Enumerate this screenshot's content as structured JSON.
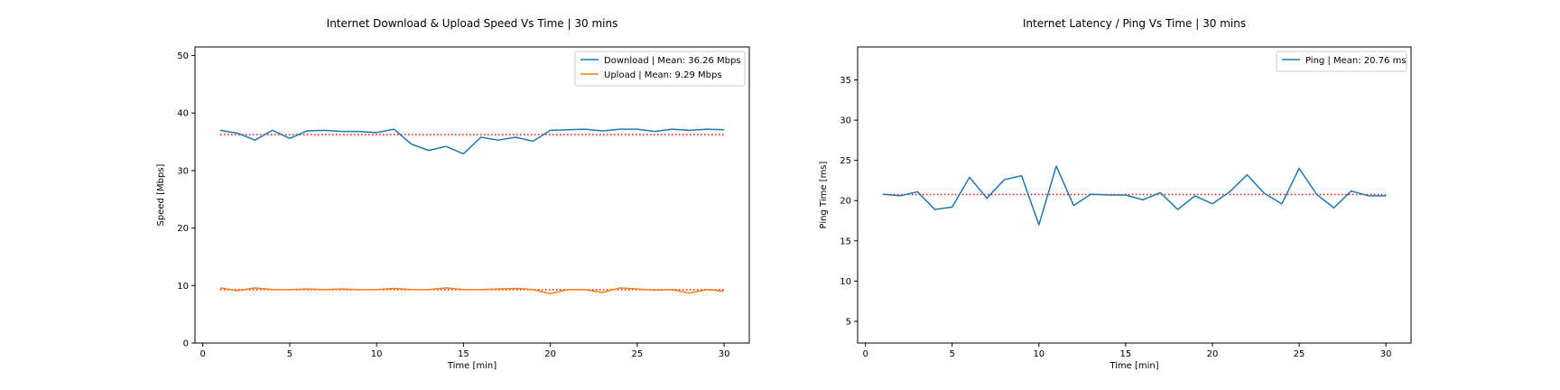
{
  "chart_data": [
    {
      "type": "line",
      "title": "Internet Download & Upload Speed Vs Time | 30 mins",
      "xlabel": "Time [min]",
      "ylabel": "Speed [Mbps]",
      "xlim": [
        -0.45,
        31.45
      ],
      "ylim": [
        0,
        51.5
      ],
      "xticks": [
        0,
        5,
        10,
        15,
        20,
        25,
        30
      ],
      "yticks": [
        0,
        10,
        20,
        30,
        40,
        50
      ],
      "grid": false,
      "legend_position": "top-right",
      "x": [
        1,
        2,
        3,
        4,
        5,
        6,
        7,
        8,
        9,
        10,
        11,
        12,
        13,
        14,
        15,
        16,
        17,
        18,
        19,
        20,
        21,
        22,
        23,
        24,
        25,
        26,
        27,
        28,
        29,
        30
      ],
      "series": [
        {
          "name": "Download | Mean: 36.26 Mbps",
          "color": "#1f77b4",
          "values": [
            37.0,
            36.5,
            35.3,
            37.0,
            35.6,
            36.9,
            37.0,
            36.8,
            36.8,
            36.6,
            37.2,
            34.6,
            33.5,
            34.2,
            32.9,
            35.8,
            35.3,
            35.8,
            35.1,
            37.0,
            37.1,
            37.2,
            36.9,
            37.2,
            37.2,
            36.8,
            37.2,
            37.0,
            37.2,
            37.1
          ],
          "mean": 36.26,
          "mean_color": "#ff0000"
        },
        {
          "name": "Upload | Mean: 9.29 Mbps",
          "color": "#ff7f0e",
          "values": [
            9.6,
            9.1,
            9.6,
            9.3,
            9.3,
            9.4,
            9.3,
            9.4,
            9.3,
            9.3,
            9.5,
            9.3,
            9.3,
            9.6,
            9.3,
            9.3,
            9.4,
            9.5,
            9.3,
            8.6,
            9.3,
            9.3,
            8.8,
            9.6,
            9.4,
            9.2,
            9.3,
            8.7,
            9.3,
            9.0
          ],
          "mean": 9.29,
          "mean_color": "#ff0000"
        }
      ]
    },
    {
      "type": "line",
      "title": "Internet Latency / Ping Vs Time | 30 mins",
      "xlabel": "Time [min]",
      "ylabel": "Ping Time [ms]",
      "xlim": [
        -0.45,
        31.45
      ],
      "ylim": [
        2.3,
        39.1
      ],
      "xticks": [
        0,
        5,
        10,
        15,
        20,
        25,
        30
      ],
      "yticks": [
        5,
        10,
        15,
        20,
        25,
        30,
        35
      ],
      "grid": false,
      "legend_position": "top-right",
      "x": [
        1,
        2,
        3,
        4,
        5,
        6,
        7,
        8,
        9,
        10,
        11,
        12,
        13,
        14,
        15,
        16,
        17,
        18,
        19,
        20,
        21,
        22,
        23,
        24,
        25,
        26,
        27,
        28,
        29,
        30
      ],
      "series": [
        {
          "name": "Ping | Mean: 20.76 ms",
          "color": "#1f77b4",
          "values": [
            20.8,
            20.6,
            21.1,
            18.9,
            19.2,
            22.9,
            20.3,
            22.6,
            23.1,
            17.0,
            24.3,
            19.4,
            20.8,
            20.7,
            20.7,
            20.1,
            21.0,
            18.9,
            20.6,
            19.6,
            21.1,
            23.2,
            20.9,
            19.6,
            24.0,
            20.8,
            19.1,
            21.2,
            20.6,
            20.6
          ],
          "mean": 20.76,
          "mean_color": "#ff0000"
        }
      ]
    }
  ]
}
